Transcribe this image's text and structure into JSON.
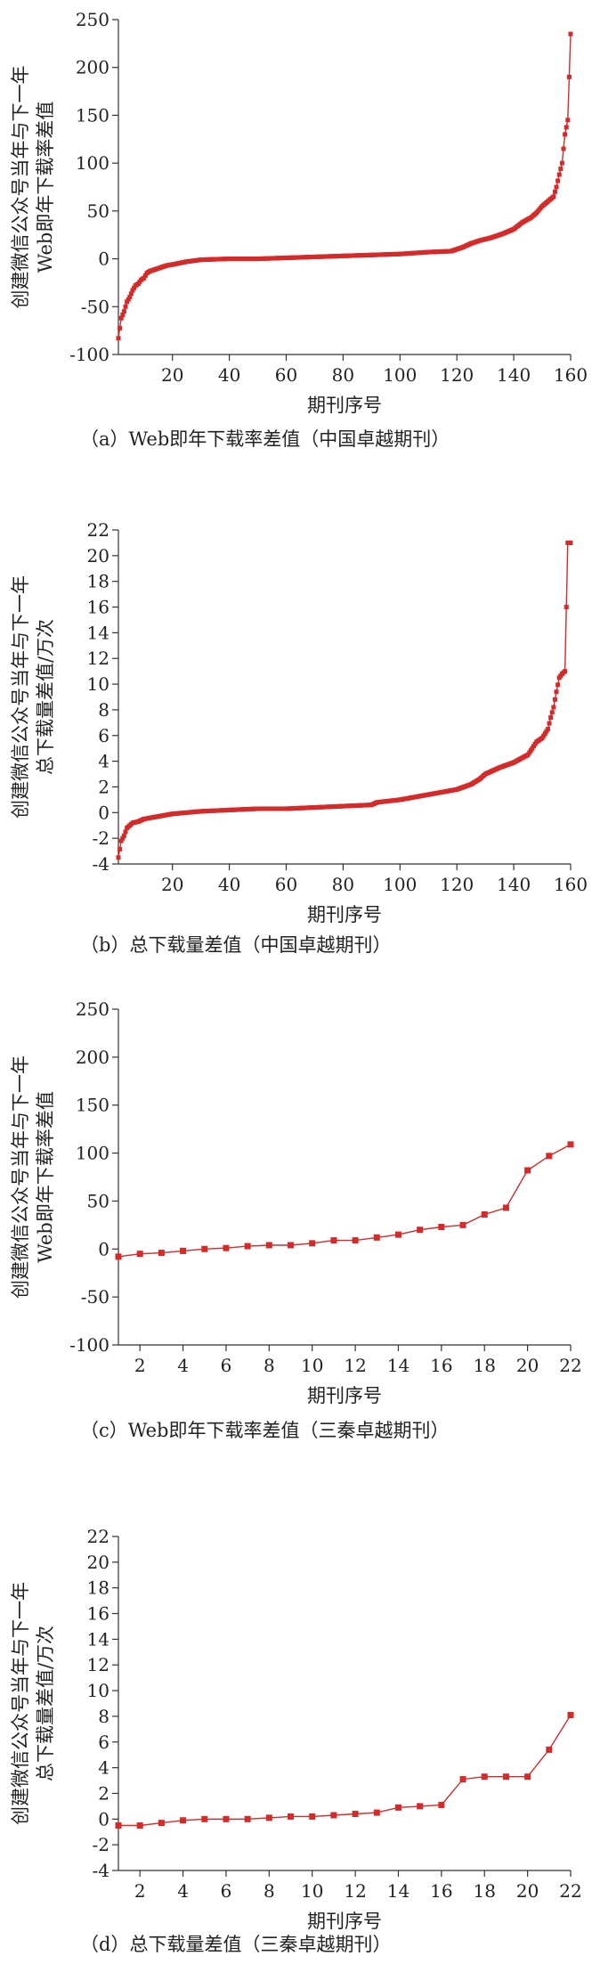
{
  "colors": {
    "series": "#d42a2a",
    "axis": "#333333",
    "text": "#222222"
  },
  "chart_data": [
    {
      "id": "a",
      "type": "line",
      "caption": "（a）Web即年下载率差值（中国卓越期刊）",
      "xlabel": "期刊序号",
      "ylabel_lines": [
        "创建微信公众号当年与下一年",
        "Web即年下载率差值"
      ],
      "xlim": [
        1,
        160
      ],
      "ylim": [
        -100,
        250
      ],
      "xticks": [
        20,
        40,
        60,
        80,
        100,
        120,
        140,
        160
      ],
      "yticks": [
        -100,
        -50,
        0,
        50,
        100,
        150,
        200,
        250
      ],
      "markers": "dense",
      "series": [
        {
          "x": [
            1,
            2,
            3,
            4,
            5,
            6,
            7,
            8,
            9,
            10,
            11,
            12,
            14,
            16,
            18,
            20,
            25,
            30,
            40,
            50,
            60,
            70,
            80,
            90,
            100,
            110,
            118,
            122,
            125,
            128,
            132,
            136,
            140,
            143,
            146,
            148,
            150,
            152,
            154,
            155,
            156,
            157,
            158,
            159,
            160
          ],
          "y": [
            -83,
            -62,
            -55,
            -45,
            -40,
            -33,
            -28,
            -26,
            -22,
            -20,
            -15,
            -13,
            -11,
            -9,
            -7,
            -6,
            -3,
            -1,
            0,
            0,
            1,
            2,
            3,
            4,
            5,
            7,
            8,
            12,
            16,
            19,
            22,
            26,
            31,
            38,
            43,
            48,
            55,
            60,
            65,
            75,
            88,
            100,
            130,
            145,
            235
          ]
        }
      ]
    },
    {
      "id": "b",
      "type": "line",
      "caption": "（b）总下载量差值（中国卓越期刊）",
      "xlabel": "期刊序号",
      "ylabel_lines": [
        "创建微信公众号当年与下一年",
        "总下载量差值/万次"
      ],
      "xlim": [
        1,
        160
      ],
      "ylim": [
        -4,
        22
      ],
      "xticks": [
        20,
        40,
        60,
        80,
        100,
        120,
        140,
        160
      ],
      "yticks": [
        -4,
        -2,
        0,
        2,
        4,
        6,
        8,
        10,
        12,
        14,
        16,
        18,
        20,
        22
      ],
      "markers": "dense",
      "series": [
        {
          "x": [
            1,
            2,
            3,
            4,
            5,
            6,
            8,
            10,
            15,
            20,
            30,
            40,
            50,
            60,
            70,
            80,
            90,
            92,
            100,
            110,
            120,
            125,
            128,
            130,
            135,
            140,
            145,
            148,
            150,
            152,
            153,
            154,
            155,
            156,
            157,
            158,
            159,
            160
          ],
          "y": [
            -3.5,
            -2.2,
            -1.8,
            -1.2,
            -1.0,
            -0.8,
            -0.7,
            -0.5,
            -0.3,
            -0.1,
            0.1,
            0.2,
            0.3,
            0.3,
            0.4,
            0.5,
            0.6,
            0.8,
            1.0,
            1.4,
            1.8,
            2.2,
            2.6,
            3.0,
            3.5,
            3.9,
            4.5,
            5.5,
            5.8,
            6.5,
            7.4,
            8.2,
            9.4,
            10.5,
            10.8,
            11.0,
            21.0,
            21.0
          ]
        }
      ]
    },
    {
      "id": "c",
      "type": "line",
      "caption": "（c）Web即年下载率差值（三秦卓越期刊）",
      "xlabel": "期刊序号",
      "ylabel_lines": [
        "创建微信公众号当年与下一年",
        "Web即年下载率差值"
      ],
      "xlim": [
        1,
        22
      ],
      "ylim": [
        -100,
        250
      ],
      "xticks": [
        2,
        4,
        6,
        8,
        10,
        12,
        14,
        16,
        18,
        20,
        22
      ],
      "yticks": [
        -100,
        -50,
        0,
        50,
        100,
        150,
        200,
        250
      ],
      "markers": "all",
      "series": [
        {
          "x": [
            1,
            2,
            3,
            4,
            5,
            6,
            7,
            8,
            9,
            10,
            11,
            12,
            13,
            14,
            15,
            16,
            17,
            18,
            19,
            20,
            21,
            22
          ],
          "y": [
            -8,
            -5,
            -4,
            -2,
            0,
            1,
            3,
            4,
            4,
            6,
            9,
            9,
            12,
            15,
            20,
            23,
            25,
            36,
            43,
            82,
            97,
            109
          ]
        }
      ]
    },
    {
      "id": "d",
      "type": "line",
      "caption": "（d）总下载量差值（三秦卓越期刊）",
      "xlabel": "期刊序号",
      "ylabel_lines": [
        "创建微信公众号当年与下一年",
        "总下载量差值/万次"
      ],
      "xlim": [
        1,
        22
      ],
      "ylim": [
        -4,
        22
      ],
      "xticks": [
        2,
        4,
        6,
        8,
        10,
        12,
        14,
        16,
        18,
        20,
        22
      ],
      "yticks": [
        -4,
        -2,
        0,
        2,
        4,
        6,
        8,
        10,
        12,
        14,
        16,
        18,
        20,
        22
      ],
      "markers": "all",
      "series": [
        {
          "x": [
            1,
            2,
            3,
            4,
            5,
            6,
            7,
            8,
            9,
            10,
            11,
            12,
            13,
            14,
            15,
            16,
            17,
            18,
            19,
            20,
            21,
            22
          ],
          "y": [
            -0.5,
            -0.5,
            -0.3,
            -0.1,
            0,
            0,
            0,
            0.1,
            0.2,
            0.2,
            0.3,
            0.4,
            0.5,
            0.9,
            1.0,
            1.1,
            3.1,
            3.3,
            3.3,
            3.3,
            5.4,
            8.1
          ]
        }
      ]
    }
  ]
}
